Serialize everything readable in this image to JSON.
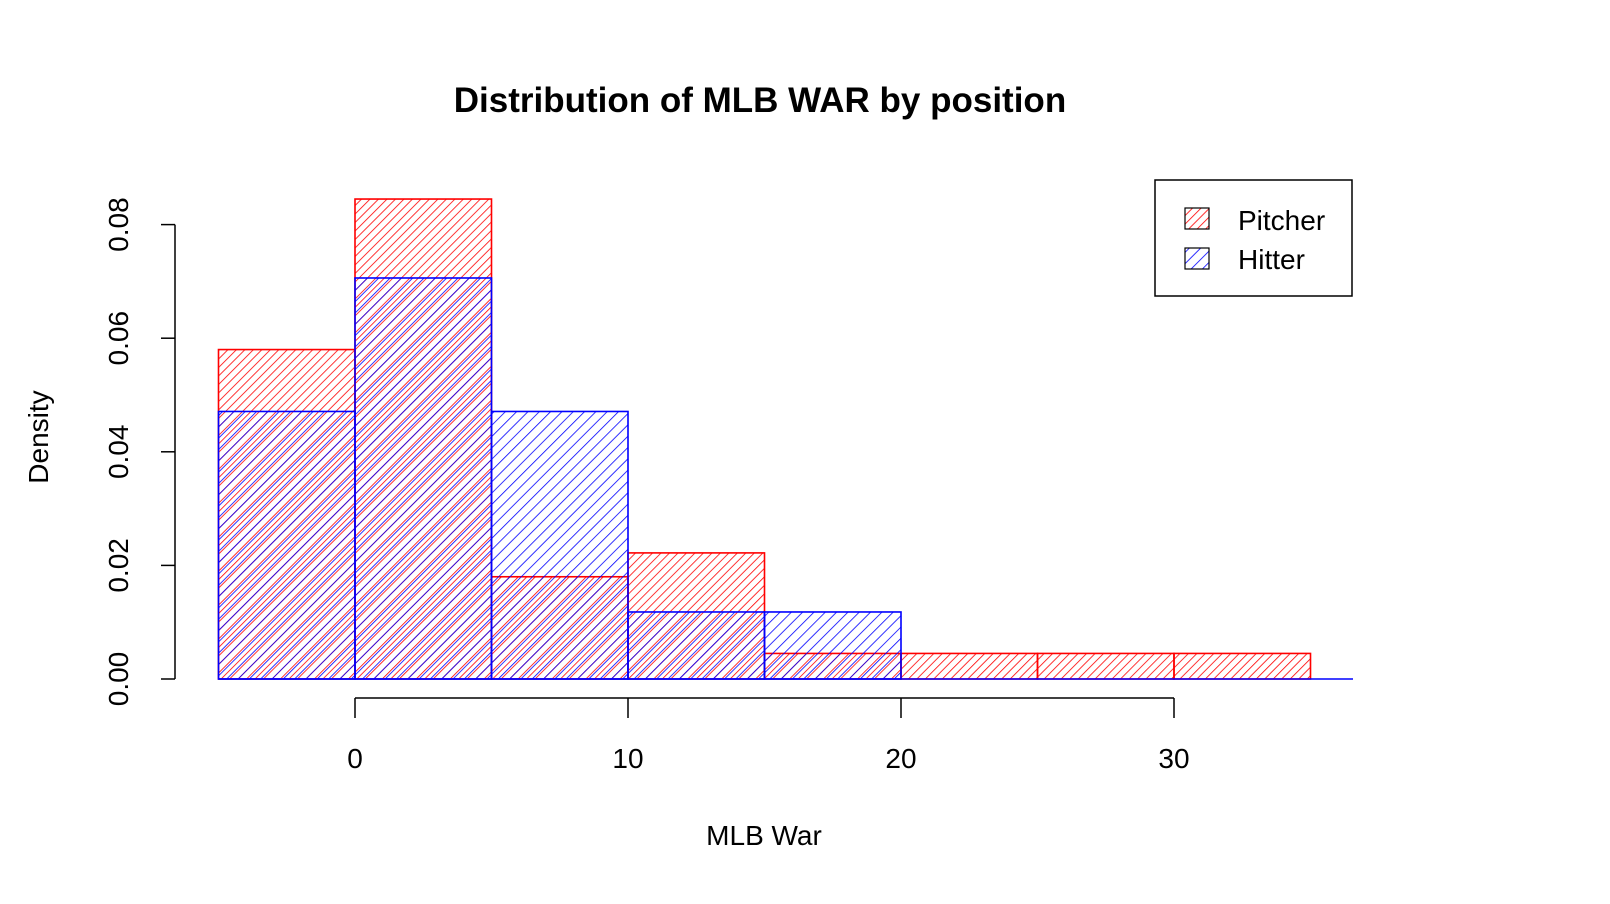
{
  "chart_data": {
    "type": "bar",
    "title": "Distribution of MLB WAR by position",
    "xlabel": "MLB War",
    "ylabel": "Density",
    "xlim": [
      -5,
      35
    ],
    "ylim": [
      0,
      0.08
    ],
    "x_ticks": [
      "0",
      "10",
      "20",
      "30"
    ],
    "y_ticks": [
      "0.00",
      "0.02",
      "0.04",
      "0.06",
      "0.08"
    ],
    "bin_edges": [
      -5,
      0,
      5,
      10,
      15,
      20,
      25,
      30,
      35
    ],
    "grid": false,
    "legend_position": "top-right",
    "series": [
      {
        "name": "Pitcher",
        "color": "#ff0000",
        "hatch": "dense diagonal lines",
        "values": [
          0.058,
          0.0845,
          0.018,
          0.0222,
          0.0045,
          0.0045,
          0.0045,
          0.0045
        ]
      },
      {
        "name": "Hitter",
        "color": "#0000ff",
        "hatch": "diagonal lines",
        "values": [
          0.0471,
          0.0706,
          0.0471,
          0.0118,
          0.0118,
          0,
          0,
          0
        ]
      }
    ]
  }
}
